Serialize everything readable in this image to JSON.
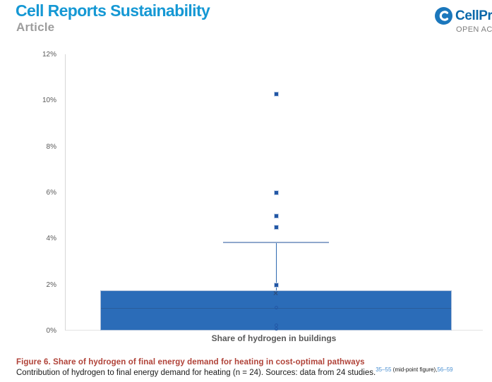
{
  "header": {
    "journal_title": "Cell Reports Sustainability",
    "article_type": "Article",
    "publisher_name": "CellPress",
    "open_access_label": "OPEN ACCESS"
  },
  "chart_data": {
    "type": "box",
    "title": "",
    "xlabel": "Share of hydrogen in buildings",
    "ylabel": "",
    "ylim": [
      0,
      12
    ],
    "grid": false,
    "yticks": [
      "0%",
      "2%",
      "4%",
      "6%",
      "8%",
      "10%",
      "12%"
    ],
    "ytick_values": [
      0,
      2,
      4,
      6,
      8,
      10,
      12
    ],
    "n": 24,
    "box": {
      "q1": 0,
      "median": 0.97,
      "q3": 1.75,
      "mean": 1.65,
      "whisker_high": 3.83,
      "whisker_low": 0
    },
    "outliers": [
      10.3,
      6.0,
      5.0,
      4.5,
      2.0
    ],
    "overlay_points": [
      0.97,
      0.2,
      0.05
    ],
    "colors": {
      "box_fill": "#2b6cb8",
      "box_border": "#aebfd9",
      "median": "#295d9c",
      "whisker": "#8fa8cc",
      "points": "#2257a5"
    }
  },
  "caption": {
    "title": "Figure 6.  Share of hydrogen of final energy demand for heating in cost-optimal pathways",
    "body": "Contribution of hydrogen to final energy demand for heating (n = 24). Sources: data from 24 studies.",
    "ref1": "35–55",
    "note": " (mid-point figure),",
    "ref2": "56–59"
  }
}
